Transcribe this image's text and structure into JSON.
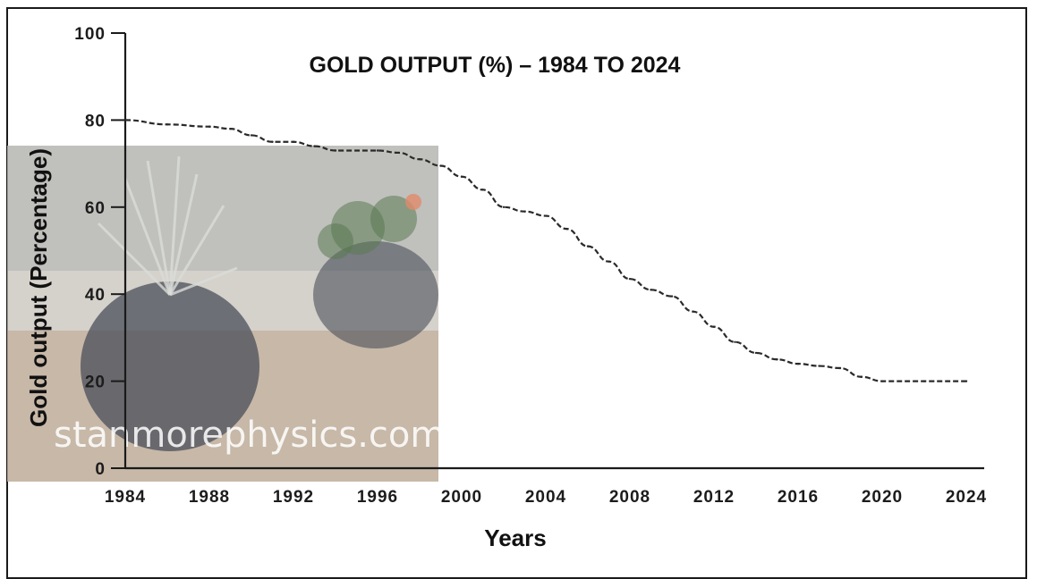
{
  "chart_data": {
    "type": "line",
    "title": "GOLD OUTPUT (%) – 1984 TO 2024",
    "xlabel": "Years",
    "ylabel": "Gold output (Percentage)",
    "x_ticks": [
      "1984",
      "1988",
      "1992",
      "1996",
      "2000",
      "2004",
      "2008",
      "2012",
      "2016",
      "2020",
      "2024"
    ],
    "y_ticks": [
      "0",
      "20",
      "40",
      "60",
      "80",
      "100"
    ],
    "xlim": [
      1984,
      2024
    ],
    "ylim": [
      0,
      100
    ],
    "grid": false,
    "line_style": "dashed",
    "line_color": "#2a2a2a",
    "series": [
      {
        "x": [
          1984,
          1986,
          1988,
          1989,
          1990,
          1991,
          1992,
          1993,
          1994,
          1996,
          1997,
          1998,
          1999,
          2000,
          2001,
          2002,
          2003,
          2004,
          2005,
          2006,
          2007,
          2008,
          2009,
          2010,
          2011,
          2012,
          2013,
          2014,
          2015,
          2016,
          2017,
          2018,
          2019,
          2020,
          2022,
          2024
        ],
        "y": [
          80,
          79,
          78.5,
          78,
          76.5,
          75,
          75,
          74,
          73,
          73,
          72.5,
          71,
          69.5,
          67,
          64,
          60,
          59,
          58,
          55,
          51,
          47.5,
          43.5,
          41,
          39.5,
          36,
          32.5,
          29,
          26.5,
          25,
          24,
          23.5,
          23,
          21,
          20,
          20,
          20
        ]
      }
    ]
  },
  "watermark": {
    "text": "stanmorephysics.com",
    "image": "photo-of-potted-plants"
  }
}
